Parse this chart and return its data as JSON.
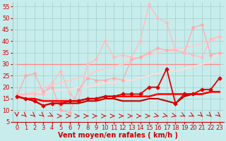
{
  "title": "",
  "xlabel": "Vent moyen/en rafales ( km/h )",
  "ylabel": "",
  "bg_color": "#c8ecec",
  "grid_color": "#9fcece",
  "xlim": [
    -0.5,
    23.5
  ],
  "ylim": [
    5,
    57
  ],
  "yticks": [
    5,
    10,
    15,
    20,
    25,
    30,
    35,
    40,
    45,
    50,
    55
  ],
  "xticks": [
    0,
    1,
    2,
    3,
    4,
    5,
    6,
    7,
    8,
    9,
    10,
    11,
    12,
    13,
    14,
    15,
    16,
    17,
    18,
    19,
    20,
    21,
    22,
    23
  ],
  "series": [
    {
      "x": [
        0,
        1,
        2,
        3,
        4,
        5,
        6,
        7,
        8,
        9,
        10,
        11,
        12,
        13,
        14,
        15,
        16,
        17,
        18,
        19,
        20,
        21,
        22,
        23
      ],
      "y": [
        30,
        30,
        30,
        30,
        30,
        30,
        30,
        30,
        30,
        30,
        30,
        30,
        30,
        30,
        30,
        30,
        30,
        30,
        30,
        30,
        30,
        30,
        30,
        30
      ],
      "color": "#ff8888",
      "linewidth": 1.0,
      "marker": null,
      "markersize": 0,
      "zorder": 2
    },
    {
      "x": [
        0,
        1,
        2,
        3,
        4,
        5,
        6,
        7,
        8,
        9,
        10,
        11,
        12,
        13,
        14,
        15,
        16,
        17,
        18,
        19,
        20,
        21,
        22,
        23
      ],
      "y": [
        16,
        25,
        26,
        18,
        20,
        10,
        9,
        19,
        24,
        23,
        23,
        24,
        23,
        32,
        33,
        35,
        37,
        36,
        36,
        35,
        46,
        47,
        34,
        35
      ],
      "color": "#ffaaaa",
      "linewidth": 0.9,
      "marker": "D",
      "markersize": 2.0,
      "zorder": 3
    },
    {
      "x": [
        0,
        1,
        2,
        3,
        4,
        5,
        6,
        7,
        8,
        9,
        10,
        11,
        12,
        13,
        14,
        15,
        16,
        17,
        18,
        19,
        20,
        21,
        22,
        23
      ],
      "y": [
        17,
        17,
        17,
        17,
        22,
        27,
        17,
        14,
        30,
        32,
        40,
        33,
        34,
        33,
        40,
        56,
        50,
        48,
        36,
        35,
        34,
        33,
        41,
        42
      ],
      "color": "#ffbbbb",
      "linewidth": 0.9,
      "marker": "D",
      "markersize": 2.0,
      "zorder": 3
    },
    {
      "x": [
        0,
        1,
        2,
        3,
        4,
        5,
        6,
        7,
        8,
        9,
        10,
        11,
        12,
        13,
        14,
        15,
        16,
        17,
        18,
        19,
        20,
        21,
        22,
        23
      ],
      "y": [
        16,
        17,
        18,
        20,
        21,
        22,
        23,
        24,
        25,
        27,
        28,
        29,
        30,
        32,
        33,
        34,
        35,
        36,
        37,
        37,
        38,
        39,
        40,
        42
      ],
      "color": "#ffcccc",
      "linewidth": 1.3,
      "marker": null,
      "markersize": 0,
      "zorder": 2
    },
    {
      "x": [
        0,
        1,
        2,
        3,
        4,
        5,
        6,
        7,
        8,
        9,
        10,
        11,
        12,
        13,
        14,
        15,
        16,
        17,
        18,
        19,
        20,
        21,
        22,
        23
      ],
      "y": [
        16,
        16,
        17,
        18,
        18,
        19,
        19,
        20,
        20,
        21,
        22,
        22,
        23,
        23,
        24,
        25,
        26,
        27,
        27,
        28,
        29,
        30,
        31,
        35
      ],
      "color": "#ffdddd",
      "linewidth": 1.3,
      "marker": null,
      "markersize": 0,
      "zorder": 2
    },
    {
      "x": [
        0,
        1,
        2,
        3,
        4,
        5,
        6,
        7,
        8,
        9,
        10,
        11,
        12,
        13,
        14,
        15,
        16,
        17,
        18,
        19,
        20,
        21,
        22,
        23
      ],
      "y": [
        16,
        15,
        14,
        12,
        13,
        13,
        14,
        14,
        15,
        15,
        16,
        16,
        17,
        17,
        17,
        20,
        20,
        28,
        13,
        17,
        17,
        19,
        19,
        24
      ],
      "color": "#dd0000",
      "linewidth": 1.3,
      "marker": "D",
      "markersize": 2.5,
      "zorder": 4
    },
    {
      "x": [
        0,
        1,
        2,
        3,
        4,
        5,
        6,
        7,
        8,
        9,
        10,
        11,
        12,
        13,
        14,
        15,
        16,
        17,
        18,
        19,
        20,
        21,
        22,
        23
      ],
      "y": [
        16,
        15,
        14,
        12,
        13,
        13,
        13,
        13,
        14,
        14,
        15,
        15,
        14,
        14,
        14,
        15,
        15,
        14,
        13,
        16,
        17,
        17,
        18,
        18
      ],
      "color": "#bb0000",
      "linewidth": 1.5,
      "marker": null,
      "markersize": 0,
      "zorder": 3
    },
    {
      "x": [
        0,
        1,
        2,
        3,
        4,
        5,
        6,
        7,
        8,
        9,
        10,
        11,
        12,
        13,
        14,
        15,
        16,
        17,
        18,
        19,
        20,
        21,
        22,
        23
      ],
      "y": [
        16,
        15,
        15,
        14,
        14,
        14,
        14,
        14,
        15,
        15,
        16,
        16,
        16,
        16,
        16,
        16,
        17,
        17,
        17,
        17,
        17,
        17,
        18,
        18
      ],
      "color": "#ff0000",
      "linewidth": 1.8,
      "marker": null,
      "markersize": 0,
      "zorder": 3
    }
  ],
  "arrow_color": "#cc0000",
  "xlabel_color": "#cc0000",
  "xlabel_fontsize": 7,
  "tick_fontsize": 6,
  "tick_color": "#cc0000",
  "wind_angles": [
    0,
    45,
    45,
    45,
    60,
    90,
    90,
    90,
    90,
    90,
    90,
    90,
    90,
    90,
    90,
    90,
    75,
    75,
    75,
    60,
    60,
    45,
    45,
    45
  ]
}
